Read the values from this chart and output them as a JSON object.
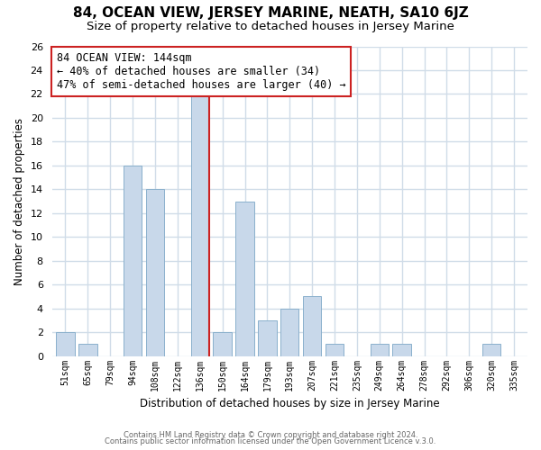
{
  "title": "84, OCEAN VIEW, JERSEY MARINE, NEATH, SA10 6JZ",
  "subtitle": "Size of property relative to detached houses in Jersey Marine",
  "xlabel": "Distribution of detached houses by size in Jersey Marine",
  "ylabel": "Number of detached properties",
  "categories": [
    "51sqm",
    "65sqm",
    "79sqm",
    "94sqm",
    "108sqm",
    "122sqm",
    "136sqm",
    "150sqm",
    "164sqm",
    "179sqm",
    "193sqm",
    "207sqm",
    "221sqm",
    "235sqm",
    "249sqm",
    "264sqm",
    "278sqm",
    "292sqm",
    "306sqm",
    "320sqm",
    "335sqm"
  ],
  "values": [
    2,
    1,
    0,
    16,
    14,
    0,
    22,
    2,
    13,
    3,
    4,
    5,
    1,
    0,
    1,
    1,
    0,
    0,
    0,
    1,
    0
  ],
  "bar_color": "#c8d8ea",
  "bar_edge_color": "#8ab0cc",
  "highlight_index": 6,
  "highlight_edge_color": "#cc2222",
  "ylim": [
    0,
    26
  ],
  "yticks": [
    0,
    2,
    4,
    6,
    8,
    10,
    12,
    14,
    16,
    18,
    20,
    22,
    24,
    26
  ],
  "annotation_title": "84 OCEAN VIEW: 144sqm",
  "annotation_line1": "← 40% of detached houses are smaller (34)",
  "annotation_line2": "47% of semi-detached houses are larger (40) →",
  "annotation_box_color": "#ffffff",
  "annotation_box_edge_color": "#cc2222",
  "footer1": "Contains HM Land Registry data © Crown copyright and database right 2024.",
  "footer2": "Contains public sector information licensed under the Open Government Licence v.3.0.",
  "background_color": "#ffffff",
  "grid_color": "#d0dce8",
  "title_fontsize": 11,
  "subtitle_fontsize": 9.5
}
